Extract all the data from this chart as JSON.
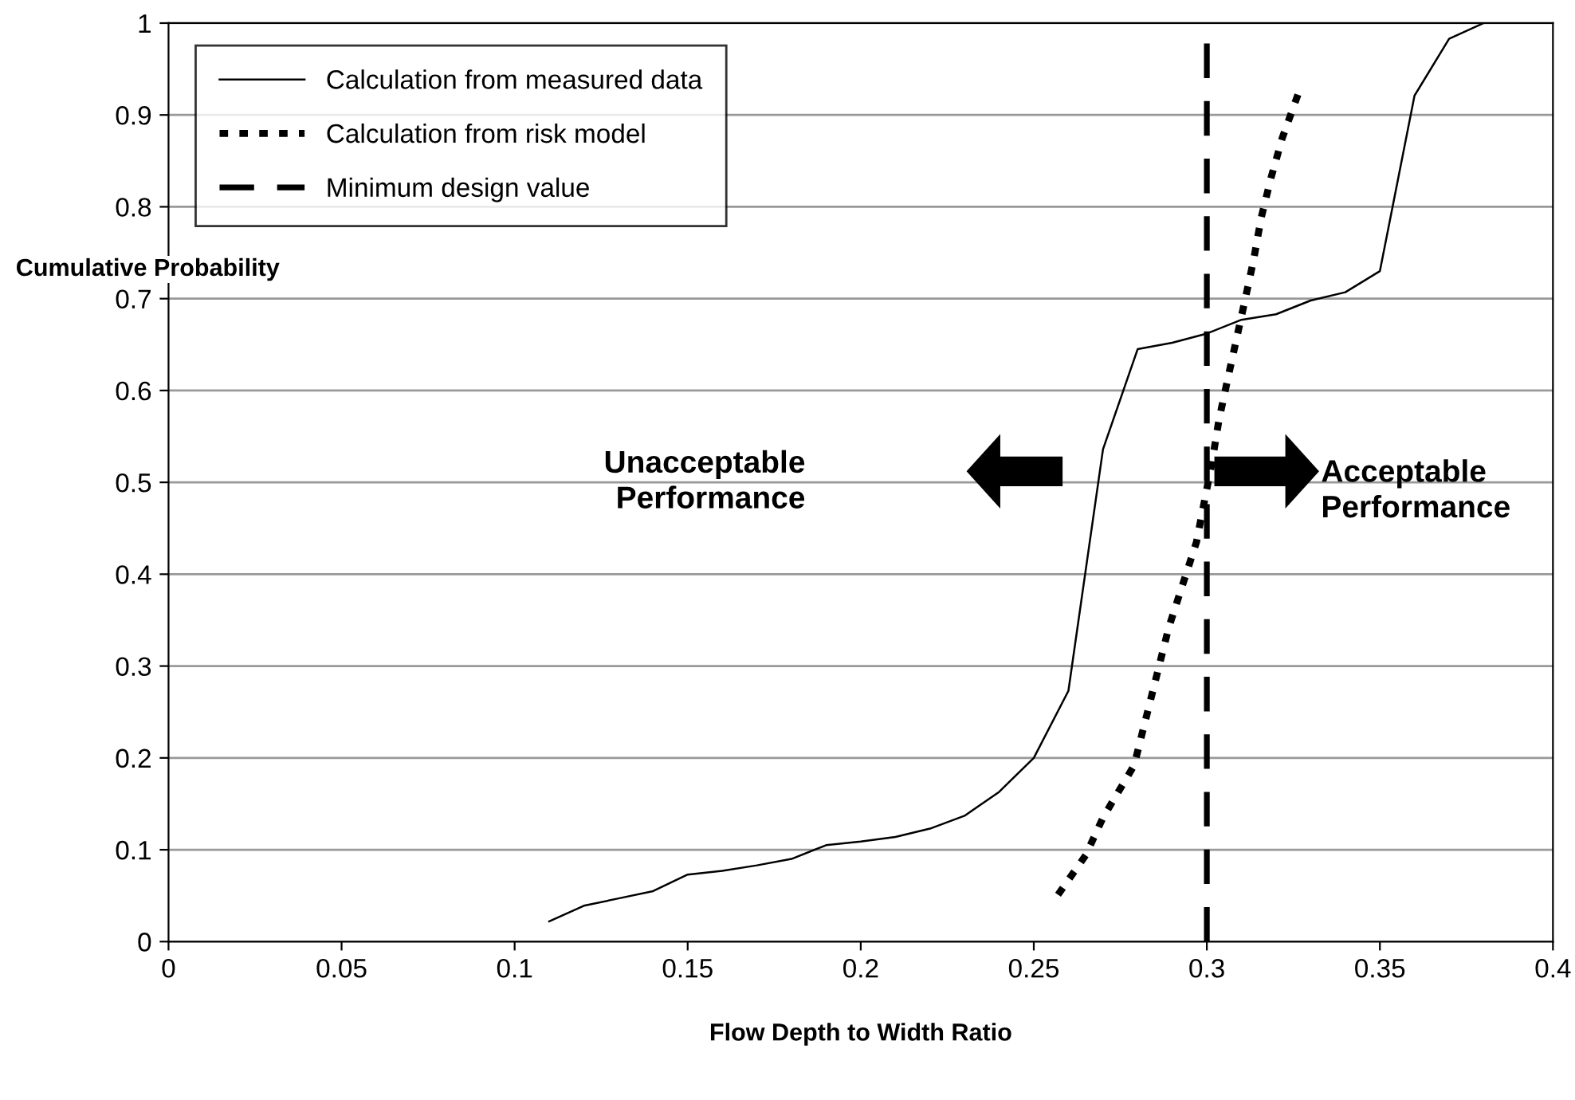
{
  "chart_data": {
    "type": "line",
    "xlabel": "Flow Depth to Width Ratio",
    "ylabel": "Cumulative Probability",
    "xlim": [
      0,
      0.4
    ],
    "xticks": [
      0,
      0.05,
      0.1,
      0.15,
      0.2,
      0.25,
      0.3,
      0.35,
      0.4
    ],
    "ylim": [
      0,
      1
    ],
    "yticks": [
      0,
      0.1,
      0.2,
      0.3,
      0.4,
      0.5,
      0.6,
      0.7,
      0.8,
      0.9,
      1
    ],
    "grid": "y",
    "legend": "top left",
    "marker": "none",
    "series": [
      {
        "name": "Calculation from measured data",
        "color": "#000000",
        "line_style": "solid",
        "x": [
          0.11,
          0.12,
          0.13,
          0.14,
          0.15,
          0.16,
          0.17,
          0.18,
          0.19,
          0.2,
          0.21,
          0.22,
          0.23,
          0.24,
          0.25,
          0.26,
          0.27,
          0.28,
          0.29,
          0.3,
          0.31,
          0.32,
          0.33,
          0.34,
          0.35,
          0.36,
          0.37,
          0.38
        ],
        "values": [
          0.022,
          0.039,
          0.047,
          0.055,
          0.073,
          0.077,
          0.083,
          0.09,
          0.105,
          0.109,
          0.114,
          0.123,
          0.137,
          0.163,
          0.2,
          0.273,
          0.536,
          0.645,
          0.652,
          0.662,
          0.677,
          0.683,
          0.698,
          0.707,
          0.73,
          0.921,
          0.983,
          1.0
        ]
      },
      {
        "name": "Calculation from risk model",
        "color": "#000000",
        "line_style": "dotted",
        "x": [
          0.257,
          0.265,
          0.27,
          0.279,
          0.289,
          0.297,
          0.3015,
          0.3035,
          0.306,
          0.3085,
          0.311,
          0.3135,
          0.3157,
          0.3185,
          0.3218,
          0.3266
        ],
        "values": [
          0.051,
          0.094,
          0.135,
          0.192,
          0.342,
          0.435,
          0.522,
          0.568,
          0.612,
          0.655,
          0.698,
          0.742,
          0.788,
          0.831,
          0.875,
          0.925
        ]
      },
      {
        "name": "Minimum design value",
        "color": "#000000",
        "line_style": "dashed",
        "x": [
          0.3,
          0.3
        ],
        "values": [
          0,
          1
        ]
      }
    ],
    "annotations": [
      "Unacceptable\nPerformance",
      "Acceptable\nPerformance"
    ]
  }
}
